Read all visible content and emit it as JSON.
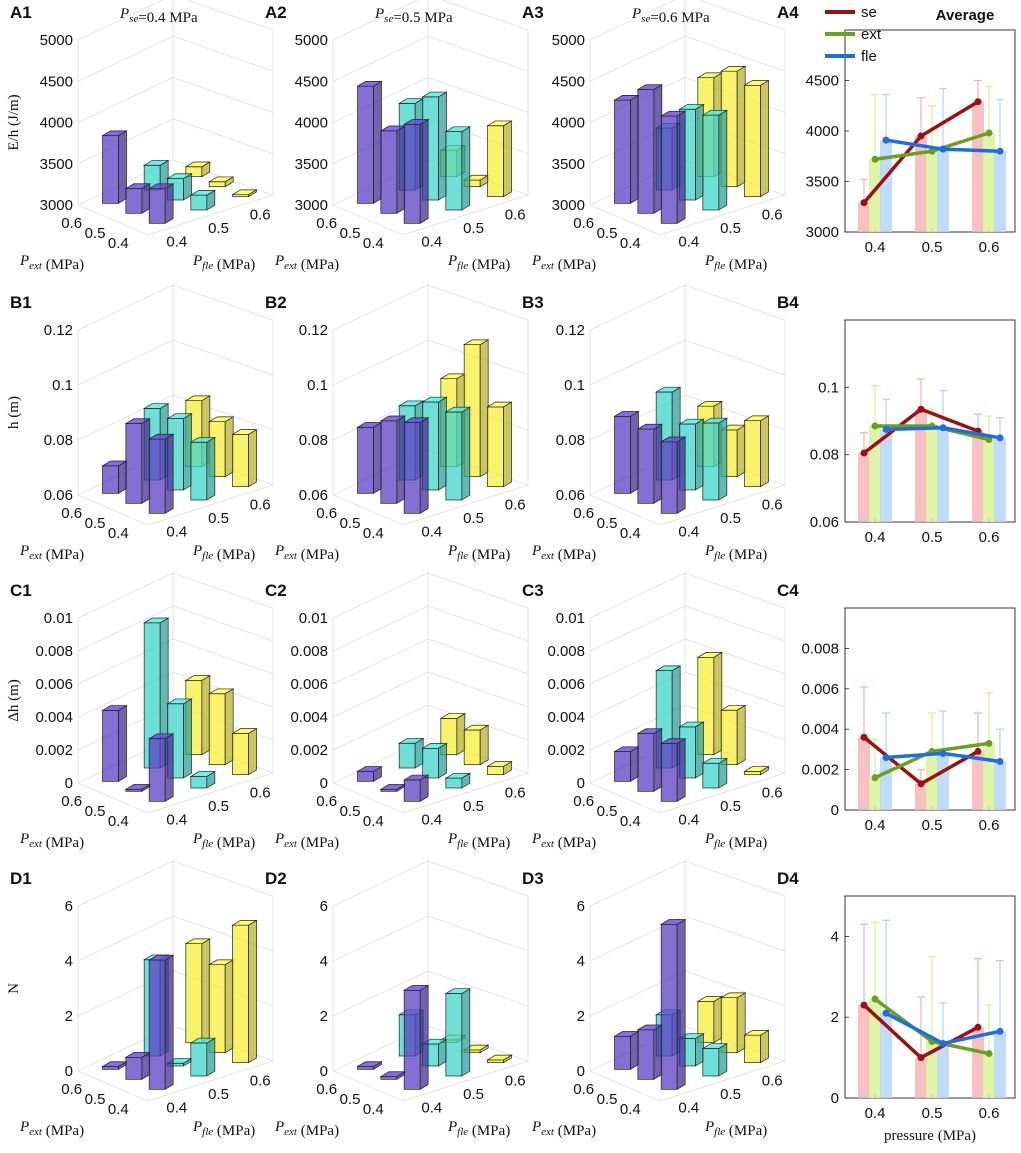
{
  "figure": {
    "column_titles": [
      "P_se=0.4 MPa",
      "P_se=0.5 MPa",
      "P_se=0.6 MPa",
      "Average"
    ],
    "colors": {
      "fle_04": "#5b3fc4",
      "fle_05": "#3fd6c9",
      "fle_06": "#f7ef3a",
      "se": "#9c0f12",
      "ext": "#6a9f1f",
      "fle": "#1f6ee0",
      "se_bar": "#f6b6b6",
      "ext_bar": "#d9f29a",
      "fle_bar": "#b6d6f7"
    }
  },
  "chart_data": [
    {
      "id": "A1",
      "type": "bar3d",
      "title": "P_se=0.4 MPa",
      "zlabel": "E/h (J/m)",
      "xlabel": "P_ext (MPa)",
      "ylabel": "P_fle (MPa)",
      "zlim": [
        3000,
        5000
      ],
      "zticks": [
        "3000",
        "3500",
        "4000",
        "4500",
        "5000"
      ],
      "ext_ticks": [
        "0.6",
        "0.5",
        "0.4"
      ],
      "fle_ticks": [
        "0.4",
        "0.5",
        "0.6"
      ],
      "ext": [
        0.6,
        0.5,
        0.4
      ],
      "fle": [
        0.4,
        0.5,
        0.6
      ],
      "values": [
        [
          3820,
          3300,
          3120
        ],
        [
          3300,
          3260,
          3060
        ],
        [
          3420,
          3180,
          3010
        ]
      ]
    },
    {
      "id": "A2",
      "type": "bar3d",
      "title": "P_se=0.5 MPa",
      "zlabel": "",
      "xlabel": "P_ext (MPa)",
      "ylabel": "P_fle (MPa)",
      "zlim": [
        3000,
        5000
      ],
      "zticks": [
        "3000",
        "3500",
        "4000",
        "4500",
        "5000"
      ],
      "ext_ticks": [
        "0.6",
        "0.5",
        "0.4"
      ],
      "fle_ticks": [
        "0.4",
        "0.5",
        "0.6"
      ],
      "ext": [
        0.6,
        0.5,
        0.4
      ],
      "fle": [
        0.4,
        0.5,
        0.6
      ],
      "values": [
        [
          4420,
          4050,
          3320
        ],
        [
          4000,
          4250,
          3080
        ],
        [
          4200,
          3950,
          3860
        ]
      ]
    },
    {
      "id": "A3",
      "type": "bar3d",
      "title": "P_se=0.6 MPa",
      "zlabel": "",
      "xlabel": "P_ext (MPa)",
      "ylabel": "P_fle (MPa)",
      "zlim": [
        3000,
        5000
      ],
      "zticks": [
        "3000",
        "3500",
        "4000",
        "4500",
        "5000"
      ],
      "ext_ticks": [
        "0.6",
        "0.5",
        "0.4"
      ],
      "fle_ticks": [
        "0.4",
        "0.5",
        "0.6"
      ],
      "ext": [
        0.6,
        0.5,
        0.4
      ],
      "fle": [
        0.4,
        0.5,
        0.6
      ],
      "values": [
        [
          4250,
          3750,
          4200
        ],
        [
          4500,
          4100,
          4400
        ],
        [
          4300,
          4150,
          4350
        ]
      ]
    },
    {
      "id": "A4",
      "type": "bar_line",
      "title": "Average",
      "categories": [
        "0.4",
        "0.5",
        "0.6"
      ],
      "xlabel": "",
      "ylabel": "",
      "ylim": [
        3000,
        5000
      ],
      "yticks": [
        "3000",
        "3500",
        "4000",
        "4500"
      ],
      "legend": [
        "se",
        "ext",
        "fle"
      ],
      "legend_position": "top-left",
      "series": [
        {
          "name": "se",
          "values": [
            3290,
            3950,
            4290
          ],
          "err": [
            230,
            380,
            210
          ]
        },
        {
          "name": "ext",
          "values": [
            3720,
            3800,
            3980
          ],
          "err": [
            640,
            450,
            460
          ]
        },
        {
          "name": "fle",
          "values": [
            3910,
            3820,
            3800
          ],
          "err": [
            450,
            600,
            510
          ]
        }
      ]
    },
    {
      "id": "B1",
      "type": "bar3d",
      "title": "",
      "zlabel": "h (m)",
      "xlabel": "P_ext (MPa)",
      "ylabel": "P_fle (MPa)",
      "zlim": [
        0.06,
        0.12
      ],
      "zticks": [
        "0.06",
        "0.08",
        "0.1",
        "0.12"
      ],
      "ext_ticks": [
        "0.6",
        "0.5",
        "0.4"
      ],
      "fle_ticks": [
        "0.4",
        "0.5",
        "0.6"
      ],
      "ext": [
        0.6,
        0.5,
        0.4
      ],
      "fle": [
        0.4,
        0.5,
        0.6
      ],
      "values": [
        [
          0.07,
          0.086,
          0.084
        ],
        [
          0.089,
          0.086,
          0.08
        ],
        [
          0.087,
          0.081,
          0.079
        ]
      ]
    },
    {
      "id": "B2",
      "type": "bar3d",
      "title": "",
      "zlabel": "",
      "xlabel": "P_ext (MPa)",
      "ylabel": "P_fle (MPa)",
      "zlim": [
        0.06,
        0.12
      ],
      "zticks": [
        "0.06",
        "0.08",
        "0.1",
        "0.12"
      ],
      "ext_ticks": [
        "0.6",
        "0.5",
        "0.4"
      ],
      "fle_ticks": [
        "0.4",
        "0.5",
        "0.6"
      ],
      "ext": [
        0.6,
        0.5,
        0.4
      ],
      "fle": [
        0.4,
        0.5,
        0.6
      ],
      "values": [
        [
          0.084,
          0.087,
          0.092
        ],
        [
          0.09,
          0.092,
          0.108
        ],
        [
          0.093,
          0.092,
          0.089
        ]
      ]
    },
    {
      "id": "B3",
      "type": "bar3d",
      "title": "",
      "zlabel": "",
      "xlabel": "P_ext (MPa)",
      "ylabel": "P_fle (MPa)",
      "zlim": [
        0.06,
        0.12
      ],
      "zticks": [
        "0.06",
        "0.08",
        "0.1",
        "0.12"
      ],
      "ext_ticks": [
        "0.6",
        "0.5",
        "0.4"
      ],
      "fle_ticks": [
        "0.4",
        "0.5",
        "0.6"
      ],
      "ext": [
        0.6,
        0.5,
        0.4
      ],
      "fle": [
        0.4,
        0.5,
        0.6
      ],
      "values": [
        [
          0.088,
          0.092,
          0.082
        ],
        [
          0.087,
          0.084,
          0.077
        ],
        [
          0.086,
          0.088,
          0.084
        ]
      ]
    },
    {
      "id": "B4",
      "type": "bar_line",
      "title": "",
      "categories": [
        "0.4",
        "0.5",
        "0.6"
      ],
      "xlabel": "",
      "ylabel": "",
      "ylim": [
        0.06,
        0.12
      ],
      "yticks": [
        "0.06",
        "0.08",
        "0.1"
      ],
      "legend": [],
      "legend_position": "",
      "series": [
        {
          "name": "se",
          "values": [
            0.0805,
            0.0935,
            0.087
          ],
          "err": [
            0.006,
            0.009,
            0.005
          ]
        },
        {
          "name": "ext",
          "values": [
            0.0885,
            0.0885,
            0.0845
          ],
          "err": [
            0.012,
            0.005,
            0.007
          ]
        },
        {
          "name": "fle",
          "values": [
            0.0875,
            0.088,
            0.085
          ],
          "err": [
            0.009,
            0.011,
            0.006
          ]
        }
      ]
    },
    {
      "id": "C1",
      "type": "bar3d",
      "title": "",
      "zlabel": "Δh (m)",
      "xlabel": "P_ext (MPa)",
      "ylabel": "P_fle (MPa)",
      "zlim": [
        0,
        0.01
      ],
      "zticks": [
        "0",
        "0.002",
        "0.004",
        "0.006",
        "0.008",
        "0.01"
      ],
      "ext_ticks": [
        "0.6",
        "0.5",
        "0.4"
      ],
      "fle_ticks": [
        "0.4",
        "0.5",
        "0.6"
      ],
      "ext": [
        0.6,
        0.5,
        0.4
      ],
      "fle": [
        0.4,
        0.5,
        0.6
      ],
      "values": [
        [
          0.0043,
          0.0088,
          0.0045
        ],
        [
          0.0001,
          0.0045,
          0.0043
        ],
        [
          0.0038,
          0.0007,
          0.0025
        ]
      ]
    },
    {
      "id": "C2",
      "type": "bar3d",
      "title": "",
      "zlabel": "",
      "xlabel": "P_ext (MPa)",
      "ylabel": "P_fle (MPa)",
      "zlim": [
        0,
        0.01
      ],
      "zticks": [
        "0",
        "0.002",
        "0.004",
        "0.006",
        "0.008",
        "0.01"
      ],
      "ext_ticks": [
        "0.6",
        "0.5",
        "0.4"
      ],
      "fle_ticks": [
        "0.4",
        "0.5",
        "0.6"
      ],
      "ext": [
        0.6,
        0.5,
        0.4
      ],
      "fle": [
        0.4,
        0.5,
        0.6
      ],
      "values": [
        [
          0.0006,
          0.0015,
          0.0022
        ],
        [
          0.0001,
          0.0018,
          0.0021
        ],
        [
          0.0013,
          0.0006,
          0.0005
        ]
      ]
    },
    {
      "id": "C3",
      "type": "bar3d",
      "title": "",
      "zlabel": "",
      "xlabel": "P_ext (MPa)",
      "ylabel": "P_fle (MPa)",
      "zlim": [
        0,
        0.01
      ],
      "zticks": [
        "0",
        "0.002",
        "0.004",
        "0.006",
        "0.008",
        "0.01"
      ],
      "ext_ticks": [
        "0.6",
        "0.5",
        "0.4"
      ],
      "fle_ticks": [
        "0.4",
        "0.5",
        "0.6"
      ],
      "ext": [
        0.6,
        0.5,
        0.4
      ],
      "fle": [
        0.4,
        0.5,
        0.6
      ],
      "values": [
        [
          0.0018,
          0.0059,
          0.0059
        ],
        [
          0.0035,
          0.0031,
          0.0033
        ],
        [
          0.0035,
          0.0015,
          0.0002
        ]
      ]
    },
    {
      "id": "C4",
      "type": "bar_line",
      "title": "",
      "categories": [
        "0.4",
        "0.5",
        "0.6"
      ],
      "xlabel": "",
      "ylabel": "",
      "ylim": [
        0,
        0.01
      ],
      "yticks": [
        "0",
        "0.002",
        "0.004",
        "0.006",
        "0.008"
      ],
      "legend": [],
      "legend_position": "",
      "series": [
        {
          "name": "se",
          "values": [
            0.0036,
            0.0013,
            0.0029
          ],
          "err": [
            0.0025,
            0.0007,
            0.0019
          ]
        },
        {
          "name": "ext",
          "values": [
            0.0016,
            0.0029,
            0.0033
          ],
          "err": [
            0.0019,
            0.0019,
            0.0025
          ]
        },
        {
          "name": "fle",
          "values": [
            0.0026,
            0.0028,
            0.0024
          ],
          "err": [
            0.0022,
            0.0021,
            0.0016
          ]
        }
      ]
    },
    {
      "id": "D1",
      "type": "bar3d",
      "title": "",
      "zlabel": "N",
      "xlabel": "P_ext (MPa)",
      "ylabel": "P_fle (MPa)",
      "zlim": [
        0,
        6
      ],
      "zticks": [
        "0",
        "2",
        "4",
        "6"
      ],
      "ext_ticks": [
        "0.6",
        "0.5",
        "0.4"
      ],
      "fle_ticks": [
        "0.4",
        "0.5",
        "0.6"
      ],
      "ext": [
        0.6,
        0.5,
        0.4
      ],
      "fle": [
        0.4,
        0.5,
        0.6
      ],
      "values": [
        [
          0.1,
          3.5,
          3.6
        ],
        [
          0.8,
          0.1,
          3.2
        ],
        [
          4.7,
          1.2,
          5.0
        ]
      ]
    },
    {
      "id": "D2",
      "type": "bar3d",
      "title": "",
      "zlabel": "",
      "xlabel": "P_ext (MPa)",
      "ylabel": "P_fle (MPa)",
      "zlim": [
        0,
        6
      ],
      "zticks": [
        "0",
        "2",
        "4",
        "6"
      ],
      "ext_ticks": [
        "0.6",
        "0.5",
        "0.4"
      ],
      "fle_ticks": [
        "0.4",
        "0.5",
        "0.6"
      ],
      "ext": [
        0.6,
        0.5,
        0.4
      ],
      "fle": [
        0.4,
        0.5,
        0.6
      ],
      "values": [
        [
          0.1,
          1.5,
          0.1
        ],
        [
          0.1,
          0.8,
          0.1
        ],
        [
          3.6,
          3.0,
          0.1
        ]
      ]
    },
    {
      "id": "D3",
      "type": "bar3d",
      "title": "",
      "zlabel": "",
      "xlabel": "P_ext (MPa)",
      "ylabel": "P_fle (MPa)",
      "zlim": [
        0,
        6
      ],
      "zticks": [
        "0",
        "2",
        "4",
        "6"
      ],
      "ext_ticks": [
        "0.6",
        "0.5",
        "0.4"
      ],
      "fle_ticks": [
        "0.4",
        "0.5",
        "0.6"
      ],
      "ext": [
        0.6,
        0.5,
        0.4
      ],
      "fle": [
        0.4,
        0.5,
        0.6
      ],
      "values": [
        [
          1.2,
          1.5,
          1.5
        ],
        [
          1.8,
          1.0,
          2.0
        ],
        [
          6.0,
          1.0,
          1.0
        ]
      ]
    },
    {
      "id": "D4",
      "type": "bar_line",
      "title": "",
      "categories": [
        "0.4",
        "0.5",
        "0.6"
      ],
      "xlabel": "pressure (MPa)",
      "ylabel": "",
      "ylim": [
        0,
        5
      ],
      "yticks": [
        "0",
        "2",
        "4"
      ],
      "legend": [],
      "legend_position": "",
      "series": [
        {
          "name": "se",
          "values": [
            2.3,
            1.0,
            1.75
          ],
          "err": [
            2.0,
            1.5,
            1.7
          ]
        },
        {
          "name": "ext",
          "values": [
            2.45,
            1.4,
            1.1
          ],
          "err": [
            1.9,
            2.1,
            1.2
          ]
        },
        {
          "name": "fle",
          "values": [
            2.1,
            1.35,
            1.65
          ],
          "err": [
            2.3,
            1.0,
            1.75
          ]
        }
      ]
    }
  ]
}
